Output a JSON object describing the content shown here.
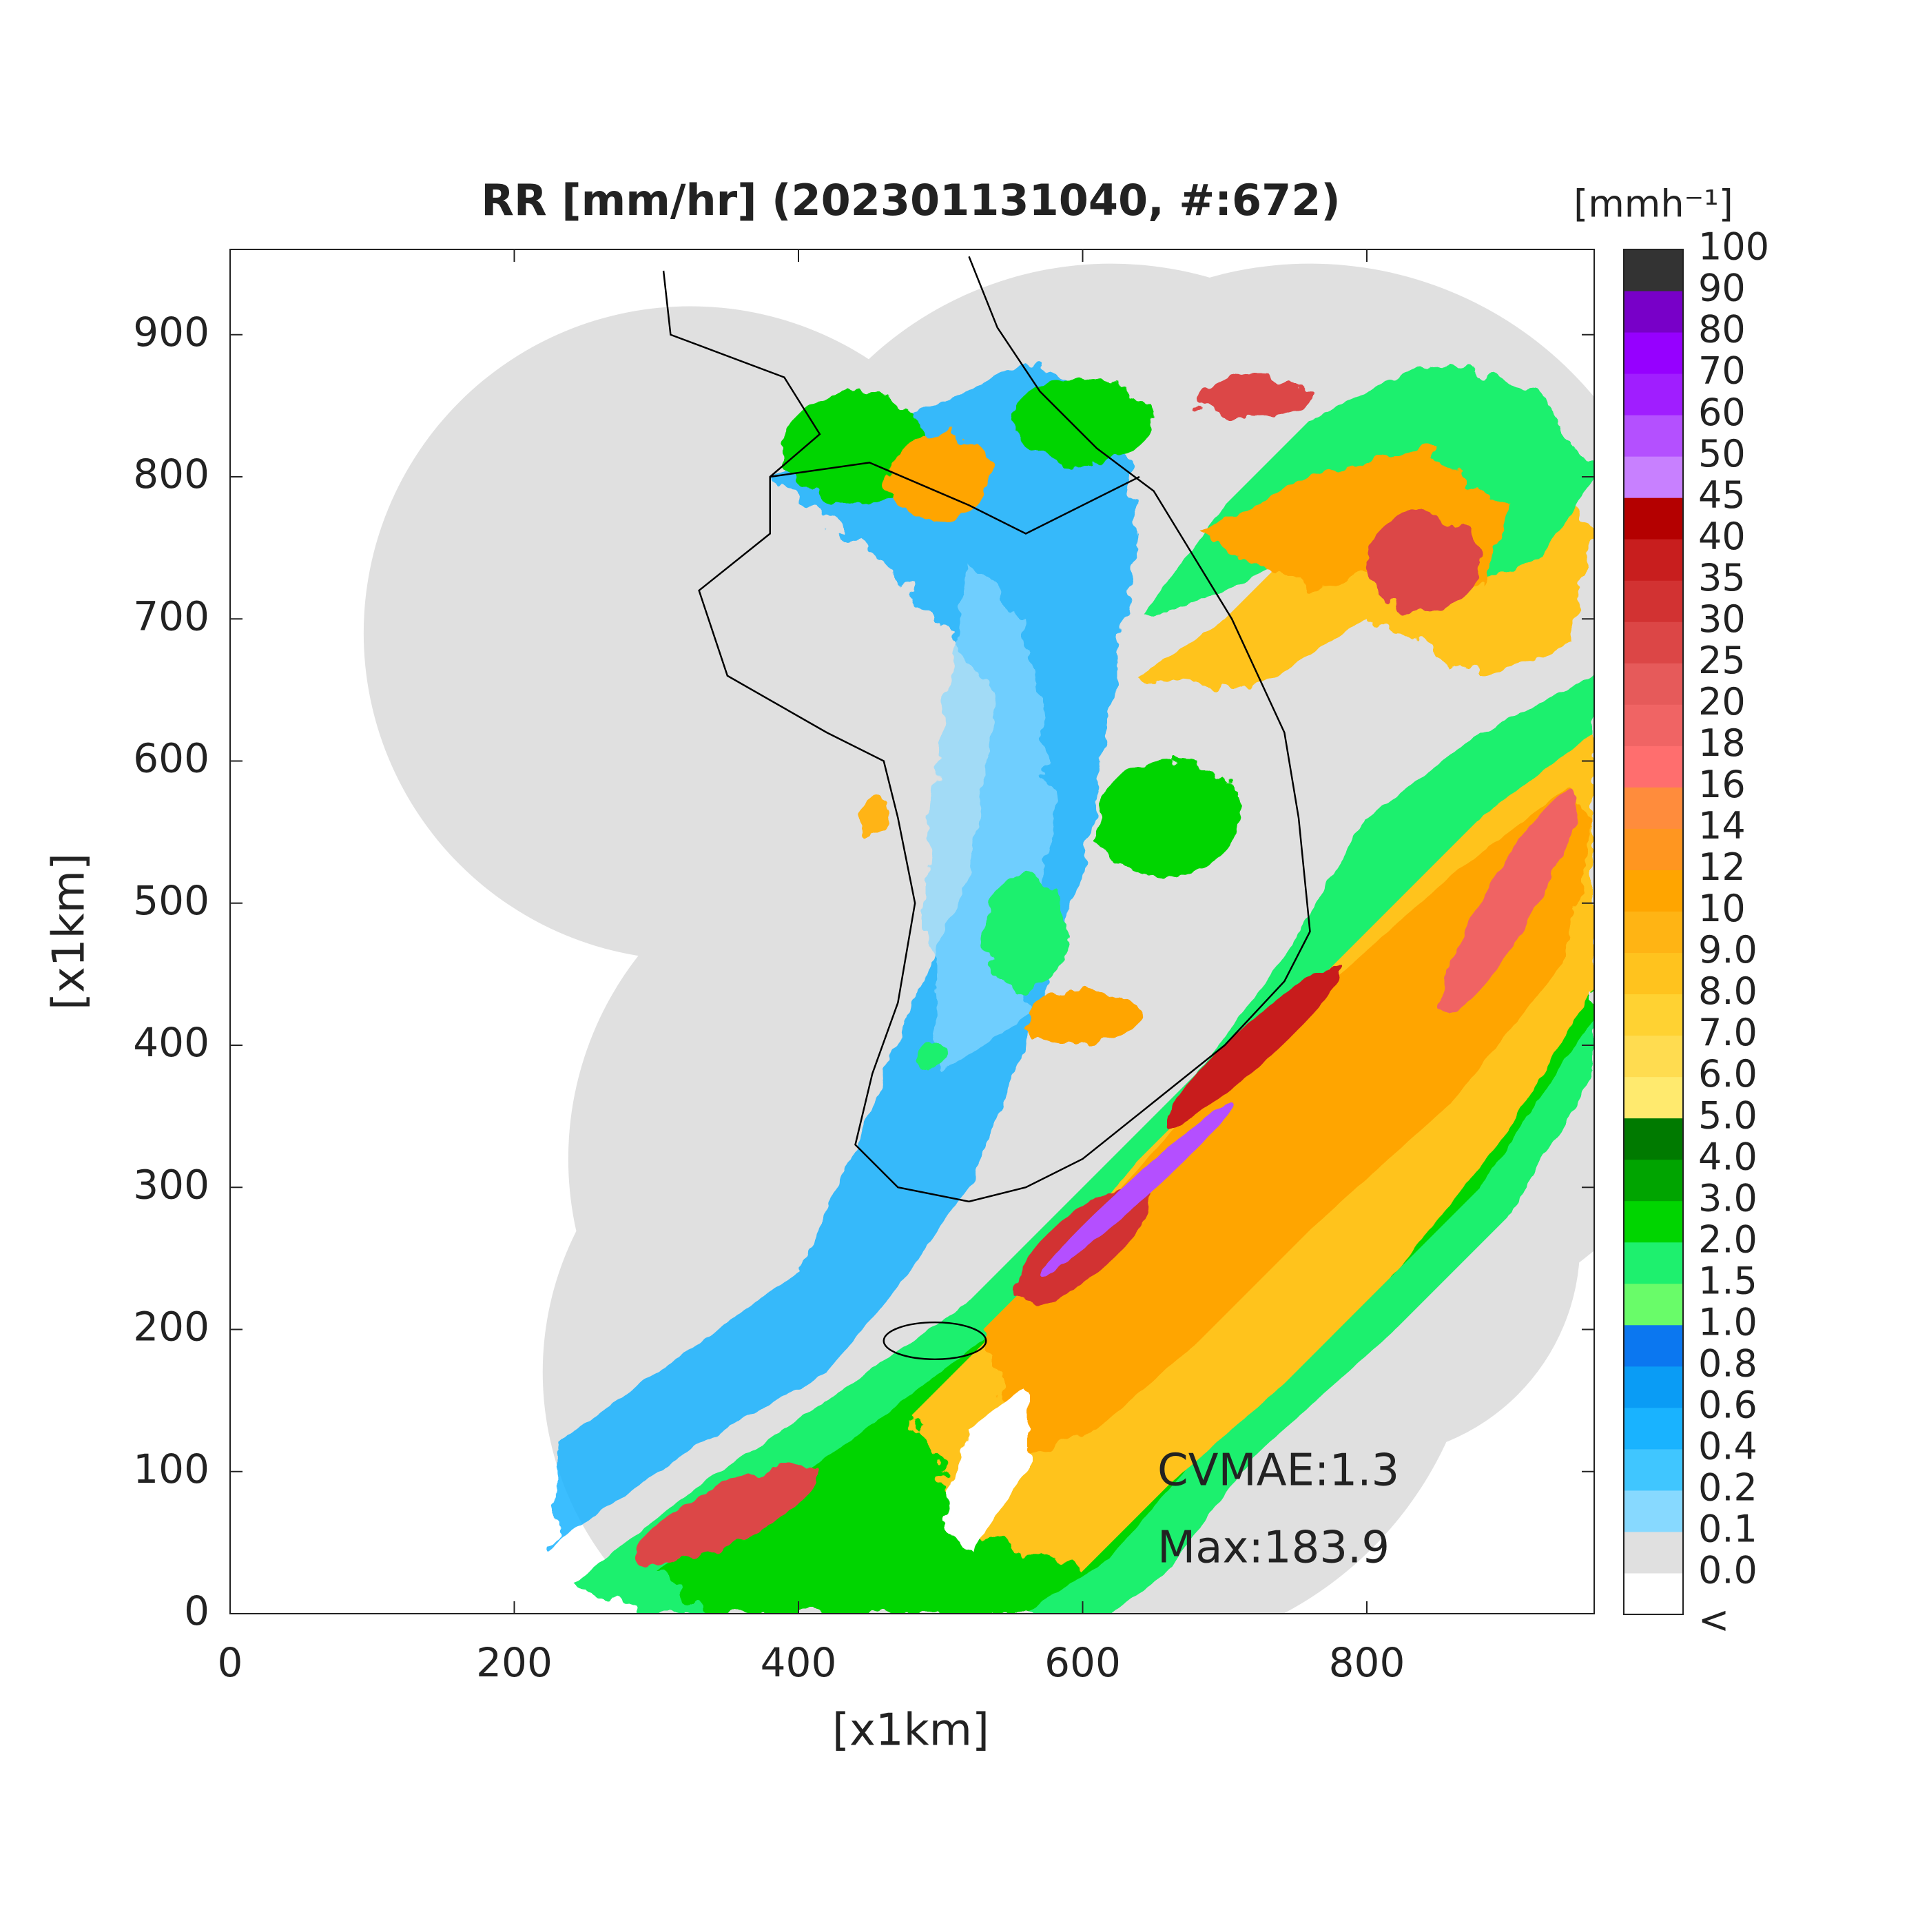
{
  "title": "RR [mm/hr] (202301131040, #:672)",
  "x_axis": {
    "label": "[x1km]",
    "lim": [
      0,
      960
    ],
    "ticks": [
      0,
      200,
      400,
      600,
      800
    ]
  },
  "y_axis": {
    "label": "[x1km]",
    "lim": [
      0,
      960
    ],
    "ticks": [
      0,
      100,
      200,
      300,
      400,
      500,
      600,
      700,
      800,
      900
    ]
  },
  "colorbar": {
    "unit": "[mmh⁻¹]",
    "labels": [
      "<",
      "0.0",
      "0.1",
      "0.2",
      "0.4",
      "0.6",
      "0.8",
      "1.0",
      "1.5",
      "2.0",
      "3.0",
      "4.0",
      "5.0",
      "6.0",
      "7.0",
      "8.0",
      "9.0",
      "10",
      "12",
      "14",
      "16",
      "18",
      "20",
      "25",
      "30",
      "35",
      "40",
      "45",
      "50",
      "60",
      "70",
      "80",
      "90",
      "100"
    ],
    "colors": [
      "#ffffff",
      "#e0e0e0",
      "#87d9ff",
      "#40c6ff",
      "#19b3ff",
      "#0a9cf5",
      "#0b77f0",
      "#69fc69",
      "#1ef06e",
      "#00d500",
      "#00a400",
      "#007a00",
      "#ffea6e",
      "#ffdc50",
      "#ffd232",
      "#ffc31e",
      "#ffb414",
      "#ffa500",
      "#ff9620",
      "#ff8c3c",
      "#ff6e6e",
      "#f06464",
      "#e65a5a",
      "#dc4646",
      "#d23232",
      "#c81e1e",
      "#b40000",
      "#c880ff",
      "#b450ff",
      "#a01eff",
      "#9600ff",
      "#7800c8",
      "#333333"
    ]
  },
  "annotations": [
    "CVMAE:1.3",
    "Max:183.9"
  ]
}
